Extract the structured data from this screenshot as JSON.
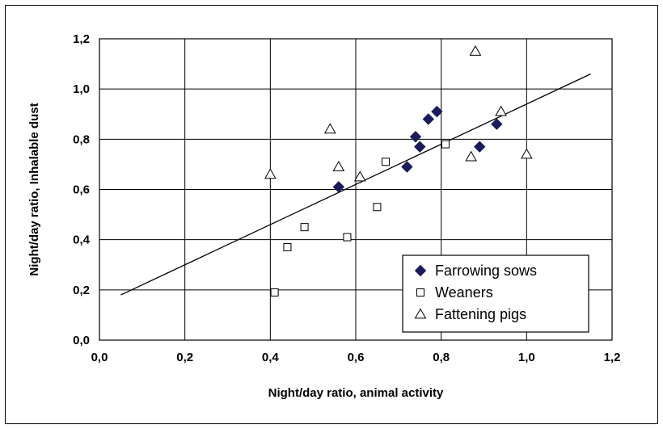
{
  "chart_data": {
    "type": "scatter",
    "xlabel": "Night/day ratio, animal activity",
    "ylabel": "Night/day ratio, Inhalable dust",
    "xlim": [
      0.0,
      1.2
    ],
    "ylim": [
      0.0,
      1.2
    ],
    "x_ticks": [
      "0,0",
      "0,2",
      "0,4",
      "0,6",
      "0,8",
      "1,0",
      "1,2"
    ],
    "y_ticks": [
      "0,0",
      "0,2",
      "0,4",
      "0,6",
      "0,8",
      "1,0",
      "1,2"
    ],
    "grid": true,
    "legend_position": "bottom-right",
    "series": [
      {
        "name": "Farrowing sows",
        "marker": "diamond",
        "color": "#1a1a5c",
        "points": [
          [
            0.56,
            0.61
          ],
          [
            0.72,
            0.69
          ],
          [
            0.74,
            0.81
          ],
          [
            0.75,
            0.77
          ],
          [
            0.77,
            0.88
          ],
          [
            0.79,
            0.91
          ],
          [
            0.89,
            0.77
          ],
          [
            0.93,
            0.86
          ]
        ]
      },
      {
        "name": "Weaners",
        "marker": "square",
        "color": "#000000",
        "points": [
          [
            0.41,
            0.19
          ],
          [
            0.44,
            0.37
          ],
          [
            0.48,
            0.45
          ],
          [
            0.58,
            0.41
          ],
          [
            0.65,
            0.53
          ],
          [
            0.67,
            0.71
          ],
          [
            0.81,
            0.78
          ]
        ]
      },
      {
        "name": "Fattening pigs",
        "marker": "triangle",
        "color": "#000000",
        "points": [
          [
            0.4,
            0.66
          ],
          [
            0.54,
            0.84
          ],
          [
            0.56,
            0.69
          ],
          [
            0.61,
            0.65
          ],
          [
            0.87,
            0.73
          ],
          [
            0.88,
            1.15
          ],
          [
            0.94,
            0.91
          ],
          [
            1.0,
            0.74
          ]
        ]
      }
    ],
    "trendline": {
      "x": [
        0.05,
        1.15
      ],
      "y": [
        0.18,
        1.06
      ]
    }
  }
}
